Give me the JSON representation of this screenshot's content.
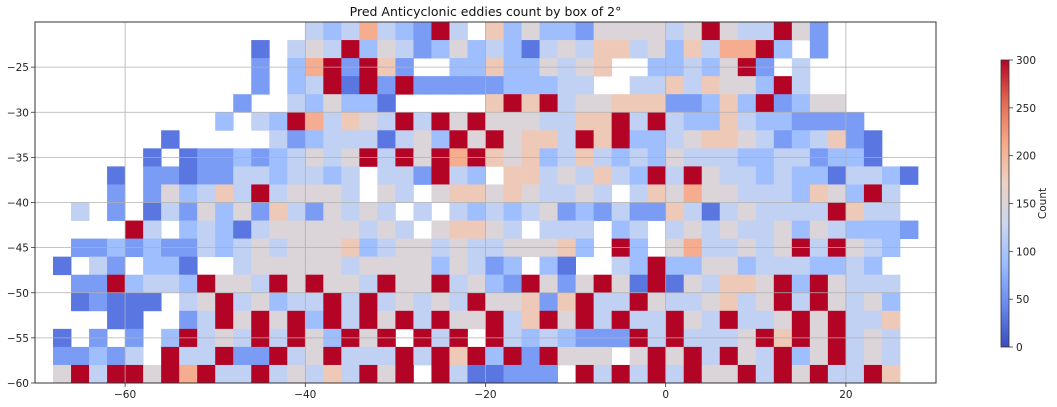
{
  "chart_data": {
    "type": "heatmap",
    "title": "Pred Anticyclonic eddies count by box of 2°",
    "xlabel": "",
    "ylabel": "",
    "xlim": [
      -70,
      30
    ],
    "ylim": [
      -60,
      -20
    ],
    "box_size_deg": 2,
    "x_ticks": [
      -60,
      -40,
      -20,
      0,
      20
    ],
    "x_tick_labels": [
      "−60",
      "−40",
      "−20",
      "0",
      "20"
    ],
    "y_ticks": [
      -25,
      -30,
      -35,
      -40,
      -45,
      -50,
      -55,
      -60
    ],
    "y_tick_labels": [
      "−25",
      "−30",
      "−35",
      "−40",
      "−45",
      "−50",
      "−55",
      "−60"
    ],
    "grid": true,
    "colormap": "coolwarm",
    "colorbar": {
      "label": "Count",
      "range": [
        0,
        300
      ],
      "ticks": [
        0,
        50,
        100,
        150,
        200,
        250,
        300
      ],
      "tick_labels": [
        "0",
        "50",
        "100",
        "150",
        "200",
        "250",
        "300"
      ],
      "placement": "right"
    },
    "color_stops": [
      "#3b4cc0",
      "#6788ee",
      "#9abbff",
      "#c9d7f0",
      "#edd1c2",
      "#f7a889",
      "#e26952",
      "#b40426"
    ],
    "grid_description": "50 columns (x from -70 to 30 in 2° steps) × 20 rows (y from -20 down to -60); each string is one row from north to south, one character per box; '.' = no data; '0'-'9','A' = count/30 (0..300)",
    "rows": [
      "...............4347432A4.635332555545A544A52.....",
      "............1.454A3542353431454664536477A3.2.....",
      "............2.37A2A62..336335456..33435A2.4......",
      "............2.34A1A2A2222233344..44646553A4......",
      "...........2..435331.....6A6A45566622363A2355....",
      "..........3.43A74654A4A5A5554466A4A43364332222...",
      ".......1.....4234441453A5A5664A6A33456654234621..",
      "......1.1223234545A4A5A7A6563464343544433442331..",
      "....1.221224434434.442A43.66454643A4A544343314431",
      "....2.253464A45554.54.5665654454.4657554443653A4.",
      "..4.2.14253526425454.4.434345232422641454444A644.",
      ".....A4.3431455555454.56654.444.34.45454453543332",
      "..22323224345455563455454455563.A3.5744545A4A543.",
      ".1.42.331..4555554555535423.31..43A335534443343..",
      "..22A3443A554A5A554A55A4532A525A51A154665A3A5444.",
      "..12111.45A45344A4A45454A55626A44A5445645A4A5453.",
      "....11..24A5A5A3A4A5A4A55A46A5A4A44A54A445A5A446.",
      ".1.2.2.3A454A4A53A5A.A4A.A4343222A4A4445A6A5A454.",
      ".22324.A44A22A45A444A4A6A3A2A555.5A5A4A54A35A454.",
      ".5A4AA5A7A44A45464A5A.A411222.A4A4A4A55A4A5A44A6."
    ]
  }
}
